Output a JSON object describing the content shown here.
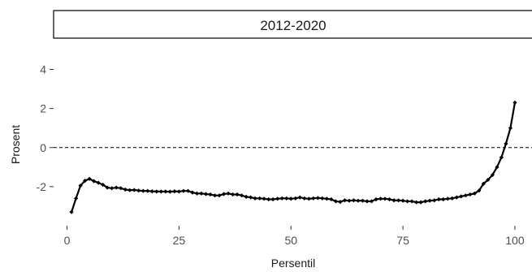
{
  "chart_data": {
    "type": "line",
    "facet_title": "2012-2020",
    "xlabel": "Persentil",
    "ylabel": "Prosent",
    "xlim": [
      -3,
      104
    ],
    "ylim": [
      -4.0,
      5.6
    ],
    "xticks": [
      0,
      25,
      50,
      75,
      100
    ],
    "yticks": [
      -2,
      0,
      2,
      4
    ],
    "reference_line": {
      "y": 0,
      "style": "dashed"
    },
    "grid": false,
    "legend": "none",
    "line_color": "#000000",
    "series": [
      {
        "x": [
          1,
          2,
          3,
          4,
          5,
          6,
          7,
          8,
          9,
          10,
          11,
          12,
          13,
          14,
          15,
          16,
          17,
          18,
          19,
          20,
          21,
          22,
          23,
          24,
          25,
          26,
          27,
          28,
          29,
          30,
          31,
          32,
          33,
          34,
          35,
          36,
          37,
          38,
          39,
          40,
          41,
          42,
          43,
          44,
          45,
          46,
          47,
          48,
          49,
          50,
          51,
          52,
          53,
          54,
          55,
          56,
          57,
          58,
          59,
          60,
          61,
          62,
          63,
          64,
          65,
          66,
          67,
          68,
          69,
          70,
          71,
          72,
          73,
          74,
          75,
          76,
          77,
          78,
          79,
          80,
          81,
          82,
          83,
          84,
          85,
          86,
          87,
          88,
          89,
          90,
          91,
          92,
          93,
          94,
          95,
          96,
          97,
          98,
          99,
          100
        ],
        "y": [
          -3.3,
          -2.6,
          -1.95,
          -1.7,
          -1.6,
          -1.72,
          -1.8,
          -1.9,
          -2.05,
          -2.08,
          -2.05,
          -2.08,
          -2.15,
          -2.18,
          -2.17,
          -2.2,
          -2.22,
          -2.22,
          -2.24,
          -2.25,
          -2.25,
          -2.25,
          -2.26,
          -2.24,
          -2.25,
          -2.22,
          -2.22,
          -2.3,
          -2.35,
          -2.35,
          -2.38,
          -2.4,
          -2.45,
          -2.45,
          -2.38,
          -2.35,
          -2.4,
          -2.4,
          -2.45,
          -2.52,
          -2.55,
          -2.6,
          -2.6,
          -2.62,
          -2.65,
          -2.65,
          -2.62,
          -2.6,
          -2.6,
          -2.62,
          -2.6,
          -2.55,
          -2.6,
          -2.62,
          -2.6,
          -2.58,
          -2.6,
          -2.62,
          -2.65,
          -2.75,
          -2.78,
          -2.7,
          -2.72,
          -2.7,
          -2.72,
          -2.72,
          -2.75,
          -2.75,
          -2.65,
          -2.62,
          -2.62,
          -2.65,
          -2.7,
          -2.7,
          -2.72,
          -2.75,
          -2.75,
          -2.8,
          -2.8,
          -2.75,
          -2.72,
          -2.7,
          -2.65,
          -2.65,
          -2.62,
          -2.6,
          -2.55,
          -2.5,
          -2.45,
          -2.4,
          -2.35,
          -2.2,
          -1.85,
          -1.65,
          -1.4,
          -1.0,
          -0.5,
          0.2,
          1.0,
          2.3
        ]
      }
    ]
  }
}
